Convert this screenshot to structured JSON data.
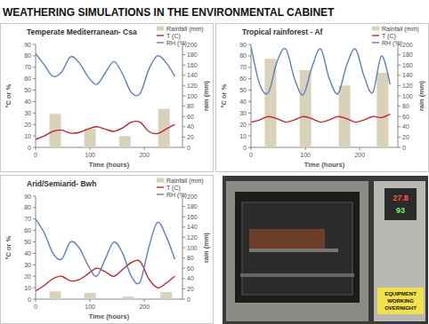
{
  "title": "WEATHERING SIMULATIONS IN THE ENVIRONMENTAL CABINET",
  "chart_data": [
    {
      "type": "line",
      "title": "Temperate Mediterranean- Csa",
      "x_label": "Time (hours)",
      "y_label": "ºC or %",
      "y2_label": "rain (mm)",
      "x": [
        0,
        16,
        32,
        48,
        64,
        80,
        96,
        112,
        128,
        144,
        160,
        176,
        192,
        208,
        224,
        240,
        256
      ],
      "xlim": [
        0,
        270
      ],
      "xticks": [
        0,
        100,
        200
      ],
      "ylim": [
        0,
        90
      ],
      "yticks": [
        0,
        10,
        20,
        30,
        40,
        50,
        60,
        70,
        80,
        90
      ],
      "y2lim": [
        0,
        200
      ],
      "y2ticks": [
        0,
        20,
        40,
        60,
        80,
        100,
        120,
        140,
        160,
        180,
        200
      ],
      "grid": false,
      "legend": "top-right",
      "series": [
        {
          "name": "Rainfall (mm)",
          "type": "bar",
          "axis": "y2",
          "color": "#d8d2bb",
          "x": [
            36,
            100,
            164,
            236
          ],
          "values": [
            65,
            36,
            22,
            75
          ]
        },
        {
          "name": "T (C)",
          "type": "line",
          "color": "#c0282d",
          "values": [
            7,
            10,
            14,
            15,
            12.5,
            13,
            16,
            18,
            16,
            14,
            17,
            22,
            22,
            14,
            12,
            16,
            20
          ]
        },
        {
          "name": "RH (%)",
          "type": "line",
          "color": "#5b7fc7",
          "values": [
            82,
            72,
            62,
            66,
            79,
            74,
            62,
            55,
            65,
            75,
            64,
            48,
            47,
            68,
            80,
            74,
            62
          ]
        }
      ]
    },
    {
      "type": "line",
      "title": "Tropical rainforest - Af",
      "x_label": "Time (hours)",
      "y_label": "ºC or %",
      "y2_label": "rain (mm)",
      "x": [
        0,
        16,
        32,
        48,
        64,
        80,
        96,
        112,
        128,
        144,
        160,
        176,
        192,
        208,
        224,
        240,
        256
      ],
      "xlim": [
        0,
        270
      ],
      "xticks": [
        0,
        100,
        200
      ],
      "ylim": [
        0,
        90
      ],
      "yticks": [
        0,
        10,
        20,
        30,
        40,
        50,
        60,
        70,
        80,
        90
      ],
      "y2lim": [
        0,
        200
      ],
      "y2ticks": [
        0,
        20,
        40,
        60,
        80,
        100,
        120,
        140,
        160,
        180,
        200
      ],
      "grid": false,
      "legend": "top-right",
      "series": [
        {
          "name": "Rainfall (mm)",
          "type": "bar",
          "axis": "y2",
          "color": "#d8d2bb",
          "x": [
            36,
            100,
            172,
            242
          ],
          "values": [
            172,
            150,
            120,
            145
          ]
        },
        {
          "name": "T (C)",
          "type": "line",
          "color": "#c0282d",
          "values": [
            22,
            24,
            27,
            25,
            22,
            24,
            27,
            25,
            22,
            24,
            27,
            25,
            22,
            24,
            27,
            26,
            29
          ]
        },
        {
          "name": "RH (%)",
          "type": "line",
          "color": "#5b7fc7",
          "values": [
            88,
            55,
            48,
            75,
            86,
            60,
            46,
            70,
            86,
            60,
            47,
            72,
            86,
            62,
            48,
            80,
            55
          ]
        }
      ]
    },
    {
      "type": "line",
      "title": "Arid/Semiarid- Bwh",
      "x_label": "Time (hours)",
      "y_label": "ºC or %",
      "y2_label": "rain (mm)",
      "x": [
        0,
        16,
        32,
        48,
        64,
        80,
        96,
        112,
        128,
        144,
        160,
        176,
        192,
        208,
        224,
        240,
        256
      ],
      "xlim": [
        0,
        270
      ],
      "xticks": [
        0,
        100,
        200
      ],
      "ylim": [
        0,
        90
      ],
      "yticks": [
        0,
        10,
        20,
        30,
        40,
        50,
        60,
        70,
        80,
        90
      ],
      "y2lim": [
        0,
        200
      ],
      "y2ticks": [
        0,
        20,
        40,
        60,
        80,
        100,
        120,
        140,
        160,
        180,
        200
      ],
      "grid": false,
      "legend": "top-right",
      "series": [
        {
          "name": "Rainfall (mm)",
          "type": "bar",
          "axis": "y2",
          "color": "#d8d2bb",
          "x": [
            36,
            100,
            170,
            240
          ],
          "values": [
            15,
            12,
            5,
            14
          ]
        },
        {
          "name": "T (C)",
          "type": "line",
          "color": "#c0282d",
          "values": [
            7,
            12,
            18,
            20,
            16,
            17,
            22,
            27,
            24,
            20,
            26,
            32,
            33,
            18,
            10,
            14,
            20
          ]
        },
        {
          "name": "RH (%)",
          "type": "line",
          "color": "#5b7fc7",
          "values": [
            70,
            58,
            40,
            35,
            50,
            45,
            30,
            20,
            35,
            50,
            40,
            20,
            15,
            45,
            67,
            55,
            35
          ]
        }
      ]
    }
  ],
  "photo": {
    "display": [
      "27.8",
      "93"
    ],
    "sign": [
      "EQUIPMENT",
      "WORKING",
      "OVERNIGHT"
    ]
  }
}
